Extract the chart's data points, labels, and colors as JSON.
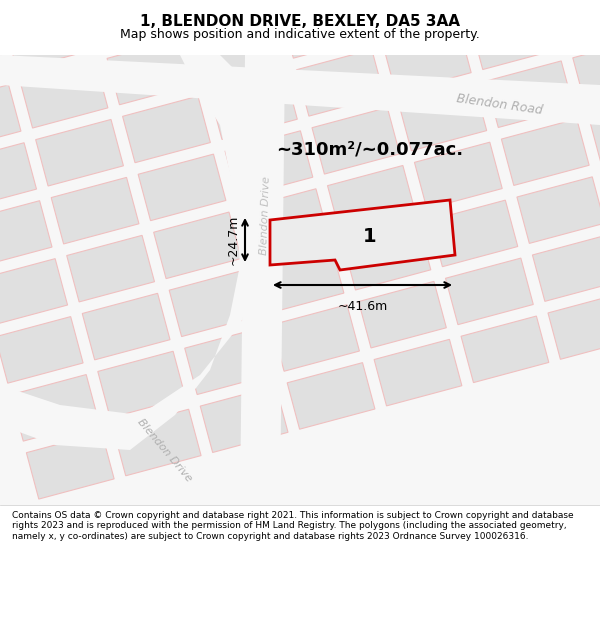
{
  "title": "1, BLENDON DRIVE, BEXLEY, DA5 3AA",
  "subtitle": "Map shows position and indicative extent of the property.",
  "footer": "Contains OS data © Crown copyright and database right 2021. This information is subject to Crown copyright and database rights 2023 and is reproduced with the permission of HM Land Registry. The polygons (including the associated geometry, namely x, y co-ordinates) are subject to Crown copyright and database rights 2023 Ordnance Survey 100026316.",
  "area_text": "~310m²/~0.077ac.",
  "width_text": "~41.6m",
  "height_text": "~24.7m",
  "plot_number": "1",
  "bg_color": "#f5f5f5",
  "map_bg": "#ffffff",
  "road_color": "#e8e8e8",
  "road_line_color": "#f0c0c0",
  "plot_outline_color": "#cc0000",
  "plot_fill_color": "#e8e8e8",
  "dim_line_color": "#000000",
  "street_label_color": "#aaaaaa",
  "road_label_color": "#999999"
}
